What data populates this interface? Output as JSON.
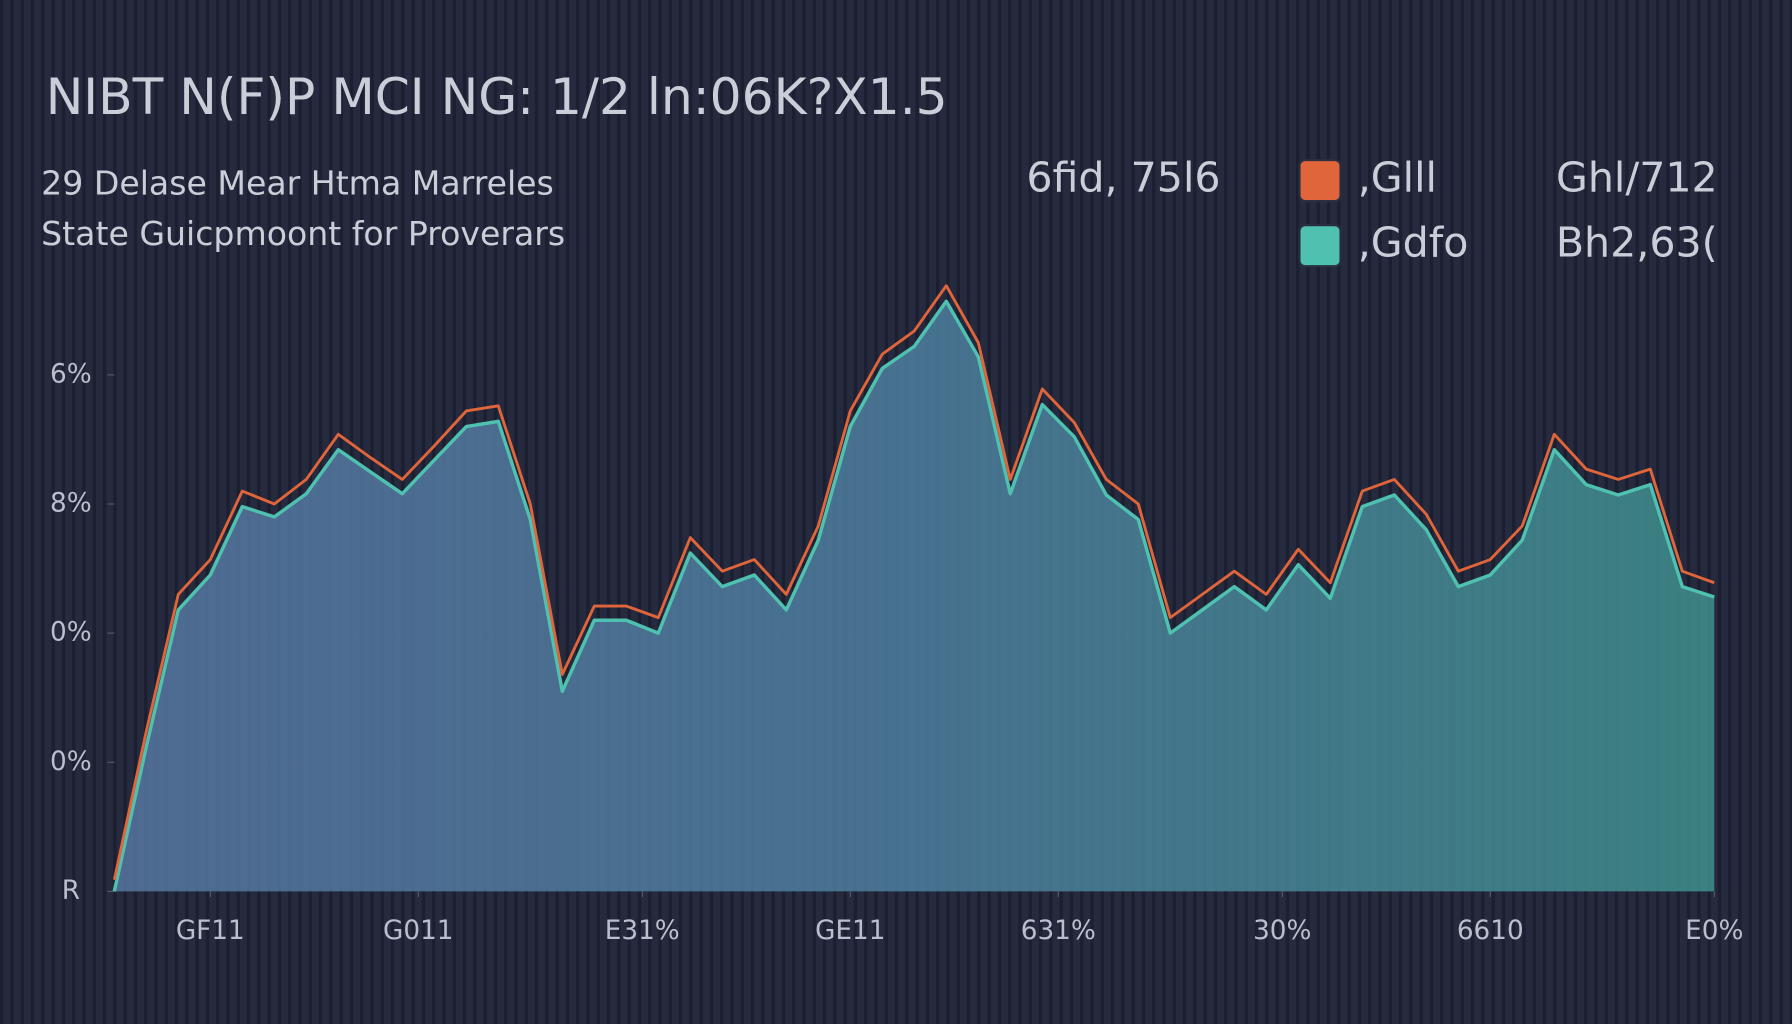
{
  "chart_data": {
    "type": "area",
    "title": "NIBT N(F)P MCI NG: 1/2 ln:06K?X1.5",
    "subtitle": [
      "29 Delase Mear Htma Marreles",
      "State Guicpmoont for Proverars"
    ],
    "annotations": [
      "6fid, 75l6",
      "Ghl/712",
      "Bh2,63("
    ],
    "x": [
      0,
      2,
      4,
      6,
      8,
      10,
      12,
      14,
      16,
      18,
      20,
      22,
      24,
      26,
      28,
      30,
      32,
      34,
      36,
      38,
      40,
      42,
      44,
      46,
      48,
      50,
      52,
      54,
      56,
      58,
      60,
      62,
      64,
      66,
      68,
      70,
      72,
      74,
      76,
      78,
      80,
      82,
      84,
      86,
      88,
      90,
      92,
      94,
      96,
      98,
      100
    ],
    "series": [
      {
        "name": ",Glll",
        "color": "#e0653a",
        "values": [
          0.09,
          1.24,
          2.3,
          2.57,
          3.1,
          3.0,
          3.19,
          3.54,
          3.36,
          3.19,
          3.45,
          3.72,
          3.76,
          3.0,
          1.68,
          2.21,
          2.21,
          2.12,
          2.74,
          2.48,
          2.57,
          2.3,
          2.83,
          3.72,
          4.16,
          4.34,
          4.69,
          4.25,
          3.19,
          3.89,
          3.63,
          3.19,
          3.0,
          2.12,
          2.3,
          2.48,
          2.3,
          2.65,
          2.39,
          3.1,
          3.19,
          2.92,
          2.48,
          2.57,
          2.83,
          3.54,
          3.27,
          3.19,
          3.27,
          2.48,
          2.39
        ]
      },
      {
        "name": ",Gdfo",
        "color": "#4fc1b0",
        "values": [
          0.0,
          1.12,
          2.18,
          2.45,
          2.98,
          2.9,
          3.08,
          3.42,
          3.25,
          3.08,
          3.34,
          3.6,
          3.64,
          2.88,
          1.55,
          2.1,
          2.1,
          2.0,
          2.62,
          2.36,
          2.45,
          2.18,
          2.72,
          3.6,
          4.05,
          4.22,
          4.57,
          4.14,
          3.08,
          3.77,
          3.52,
          3.07,
          2.88,
          2.0,
          2.18,
          2.36,
          2.18,
          2.53,
          2.27,
          2.98,
          3.07,
          2.8,
          2.36,
          2.45,
          2.72,
          3.42,
          3.15,
          3.07,
          3.15,
          2.36,
          2.28
        ]
      }
    ],
    "xlim": [
      0,
      100
    ],
    "xticks": [
      {
        "value": 6,
        "label": "GF11"
      },
      {
        "value": 19,
        "label": "G011"
      },
      {
        "value": 33,
        "label": "E31%"
      },
      {
        "value": 46,
        "label": "GE11"
      },
      {
        "value": 59,
        "label": "631%"
      },
      {
        "value": 73,
        "label": "30%"
      },
      {
        "value": 86,
        "label": "6610"
      },
      {
        "value": 100,
        "label": "E0%"
      }
    ],
    "ylim": [
      0,
      5
    ],
    "yticks": [
      {
        "value": 0,
        "label": "R"
      },
      {
        "value": 1,
        "label": "0%"
      },
      {
        "value": 2,
        "label": "0%"
      },
      {
        "value": 3,
        "label": "8%"
      },
      {
        "value": 4,
        "label": "6%"
      }
    ],
    "grid": false
  }
}
